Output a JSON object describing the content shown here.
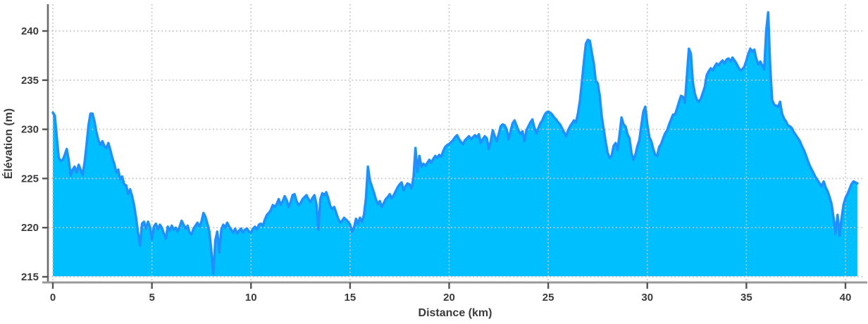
{
  "chart_data": {
    "type": "area",
    "title": "",
    "xlabel": "Distance (km)",
    "ylabel": "Élévation (m)",
    "x_ticks": [
      0,
      5,
      10,
      15,
      20,
      25,
      30,
      35,
      40
    ],
    "y_ticks": [
      215,
      220,
      225,
      230,
      235,
      240
    ],
    "xlim": [
      -0.25,
      40.9
    ],
    "ylim": [
      214.4,
      242.9
    ],
    "grid": "dotted",
    "legend": "none",
    "x_start_km": 0,
    "x_step_km": 0.1,
    "x_end_km": 40.6,
    "line_color": "#1E90FF",
    "fill_color": "#00BFFF",
    "grid_color": "#c6c6c6",
    "left_spine_color": "#6b6b6b",
    "bottom_spine_color": "#9a9a9a",
    "tick_color": "#555555",
    "text_color": "#3b3b3b",
    "elevations_m": [
      231.7,
      231.4,
      229.2,
      227.1,
      226.8,
      226.9,
      227.4,
      228.0,
      226.9,
      225.3,
      225.9,
      226.2,
      225.6,
      226.4,
      225.9,
      225.4,
      226.6,
      228.4,
      230.4,
      231.6,
      231.6,
      230.8,
      229.7,
      228.9,
      228.4,
      228.8,
      228.3,
      228.1,
      228.6,
      227.9,
      227.1,
      226.5,
      225.6,
      225.9,
      224.9,
      225.2,
      224.4,
      224.3,
      223.4,
      223.9,
      223.2,
      222.3,
      221.0,
      219.5,
      218.2,
      220.4,
      220.6,
      219.9,
      220.6,
      220.1,
      218.8,
      220.1,
      220.4,
      219.8,
      220.3,
      220.0,
      219.4,
      218.9,
      220.1,
      219.7,
      220.2,
      219.8,
      220.0,
      219.6,
      220.1,
      220.7,
      220.3,
      219.9,
      220.2,
      219.5,
      219.3,
      219.9,
      220.2,
      220.5,
      220.1,
      220.6,
      221.5,
      221.1,
      220.4,
      219.6,
      217.6,
      215.3,
      218.7,
      219.6,
      217.5,
      219.8,
      220.3,
      220.0,
      220.5,
      220.1,
      219.8,
      219.5,
      219.9,
      219.4,
      219.7,
      219.9,
      219.5,
      219.8,
      219.9,
      219.6,
      219.5,
      219.9,
      220.1,
      219.8,
      220.3,
      220.4,
      220.2,
      220.8,
      221.3,
      221.5,
      221.8,
      222.3,
      222.1,
      222.4,
      222.9,
      222.3,
      222.7,
      223.2,
      222.8,
      222.1,
      222.6,
      223.3,
      223.4,
      222.7,
      222.3,
      222.5,
      222.9,
      223.1,
      223.3,
      222.9,
      222.6,
      223.0,
      223.3,
      222.4,
      219.8,
      222.9,
      223.5,
      223.3,
      223.6,
      223.0,
      222.2,
      221.9,
      222.1,
      221.5,
      220.9,
      220.5,
      220.7,
      221.0,
      220.8,
      220.6,
      220.3,
      219.6,
      220.0,
      220.9,
      220.4,
      221.0,
      220.6,
      221.3,
      223.0,
      226.2,
      224.8,
      224.2,
      223.6,
      222.9,
      222.4,
      222.7,
      222.1,
      222.5,
      222.9,
      223.1,
      223.4,
      223.0,
      223.3,
      223.7,
      224.1,
      224.4,
      224.6,
      223.8,
      224.2,
      224.5,
      224.4,
      224.0,
      225.1,
      228.1,
      225.7,
      227.3,
      226.2,
      226.5,
      226.3,
      226.6,
      226.9,
      226.6,
      227.0,
      227.3,
      227.1,
      227.4,
      227.2,
      227.8,
      228.2,
      228.4,
      228.5,
      228.7,
      228.9,
      229.2,
      229.4,
      229.0,
      228.7,
      228.5,
      228.9,
      229.1,
      229.3,
      229.0,
      229.2,
      229.4,
      229.2,
      229.5,
      228.6,
      229.0,
      229.3,
      229.1,
      228.0,
      228.8,
      229.9,
      229.3,
      228.8,
      229.5,
      230.3,
      230.5,
      230.4,
      230.0,
      229.0,
      229.8,
      230.6,
      230.9,
      230.4,
      229.9,
      229.5,
      229.8,
      228.8,
      229.9,
      230.3,
      230.7,
      231.0,
      230.2,
      229.6,
      230.1,
      230.6,
      230.9,
      231.4,
      231.7,
      231.8,
      231.7,
      231.5,
      231.2,
      231.0,
      230.7,
      230.5,
      230.1,
      229.7,
      229.3,
      229.9,
      230.3,
      230.6,
      230.9,
      230.7,
      231.6,
      232.9,
      234.8,
      236.9,
      238.7,
      239.1,
      239.0,
      237.8,
      236.7,
      234.9,
      234.7,
      233.4,
      231.3,
      230.0,
      228.7,
      227.6,
      227.1,
      227.3,
      228.3,
      228.6,
      227.9,
      229.5,
      231.2,
      230.5,
      230.3,
      229.5,
      229.1,
      227.6,
      226.9,
      227.4,
      228.3,
      228.9,
      230.4,
      231.8,
      232.3,
      230.5,
      229.2,
      228.8,
      228.0,
      227.4,
      227.3,
      228.2,
      228.5,
      229.1,
      229.6,
      229.9,
      230.5,
      231.0,
      231.5,
      231.5,
      232.1,
      232.8,
      233.4,
      233.3,
      232.7,
      235.5,
      238.2,
      237.7,
      234.8,
      233.6,
      233.0,
      232.8,
      233.1,
      233.7,
      234.3,
      235.5,
      235.9,
      236.2,
      236.0,
      236.4,
      236.7,
      236.5,
      236.8,
      237.0,
      236.7,
      237.1,
      237.2,
      236.9,
      237.3,
      237.0,
      236.7,
      236.3,
      236.0,
      236.1,
      236.4,
      237.0,
      237.7,
      238.2,
      237.9,
      238.1,
      237.2,
      236.6,
      236.9,
      236.5,
      236.1,
      240.0,
      241.9,
      236.5,
      233.0,
      232.5,
      232.4,
      232.3,
      232.8,
      231.6,
      231.1,
      230.8,
      230.4,
      230.3,
      230.1,
      229.7,
      229.4,
      229.1,
      228.8,
      228.3,
      227.9,
      227.4,
      226.8,
      226.3,
      225.9,
      225.5,
      225.1,
      224.8,
      224.5,
      224.2,
      224.7,
      224.1,
      223.7,
      223.1,
      222.4,
      221.0,
      219.4,
      221.3,
      219.2,
      220.9,
      222.3,
      223.0,
      223.4,
      223.9,
      224.4,
      224.7,
      224.6,
      224.5
    ]
  }
}
